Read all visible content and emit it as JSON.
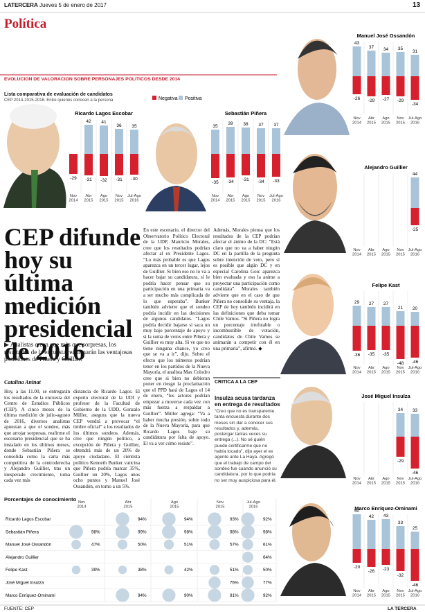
{
  "header": {
    "brand": "LATERCERA",
    "date": "Jueves 5 de enero de 2017",
    "page": "13",
    "section": "Política"
  },
  "graphic": {
    "label": "EVOLUCION DE VALORACION SOBRE PERSONAJES POLITICOS DESDE 2014",
    "subtitle": "Lista comparativa de evaluación de candidatos",
    "note": "CEP 2014-2015-2016. Entre quienes conocen a la persona"
  },
  "chart_data": [
    {
      "type": "bar",
      "title": "Ricardo Lagos Escobar",
      "categories": [
        "Nov 2014",
        "Abr 2015",
        "Ago 2015",
        "Nov 2015",
        "Jul-Ago 2016"
      ],
      "ylim": [
        -50,
        50
      ],
      "series": [
        {
          "name": "Negativa",
          "color": "#d6202e",
          "values": [
            -29,
            -31,
            -32,
            -31,
            -30
          ]
        },
        {
          "name": "Positiva",
          "color": "#a9c4d8",
          "values": [
            null,
            42,
            41,
            36,
            35
          ]
        }
      ]
    },
    {
      "type": "bar",
      "title": "Sebastián Piñera",
      "categories": [
        "Nov 2014",
        "Abr 2015",
        "Ago 2015",
        "Nov 2015",
        "Jul-Ago 2016"
      ],
      "ylim": [
        -50,
        50
      ],
      "series": [
        {
          "name": "Negativa",
          "color": "#d6202e",
          "values": [
            -35,
            -34,
            -31,
            -34,
            -33
          ]
        },
        {
          "name": "Positiva",
          "color": "#a9c4d8",
          "values": [
            35,
            39,
            38,
            37,
            37
          ]
        }
      ]
    },
    {
      "type": "bar",
      "title": "Manuel José Ossandón",
      "categories": [
        "Nov 2014",
        "Abr 2015",
        "Ago 2015",
        "Nov 2015",
        "Jul-Ago 2016"
      ],
      "ylim": [
        -50,
        50
      ],
      "series": [
        {
          "name": "Negativa",
          "color": "#d6202e",
          "values": [
            -26,
            -29,
            -27,
            -29,
            -34
          ]
        },
        {
          "name": "Positiva",
          "color": "#a9c4d8",
          "values": [
            43,
            37,
            34,
            35,
            31
          ]
        }
      ]
    },
    {
      "type": "bar",
      "title": "Alejandro Guillier",
      "categories": [
        "Nov 2014",
        "Abr 2015",
        "Ago 2015",
        "Nov 2015",
        "Jul-Ago 2016"
      ],
      "ylim": [
        -50,
        50
      ],
      "series": [
        {
          "name": "Negativa",
          "color": "#d6202e",
          "values": [
            null,
            null,
            null,
            null,
            -25
          ]
        },
        {
          "name": "Positiva",
          "color": "#a9c4d8",
          "values": [
            null,
            null,
            null,
            null,
            44
          ]
        }
      ]
    },
    {
      "type": "bar",
      "title": "Felipe Kast",
      "categories": [
        "Nov 2014",
        "Abr 2015",
        "Ago 2015",
        "Nov 2015",
        "Jul-Ago 2016"
      ],
      "ylim": [
        -50,
        50
      ],
      "series": [
        {
          "name": "Negativa",
          "color": "#d6202e",
          "values": [
            -36,
            -35,
            -35,
            -48,
            -46
          ]
        },
        {
          "name": "Positiva",
          "color": "#a9c4d8",
          "values": [
            29,
            27,
            27,
            21,
            20
          ]
        }
      ]
    },
    {
      "type": "bar",
      "title": "José Miguel Insulza",
      "categories": [
        "Nov 2014",
        "Abr 2015",
        "Ago 2015",
        "Nov 2015",
        "Jul-Ago 2016"
      ],
      "ylim": [
        -50,
        50
      ],
      "series": [
        {
          "name": "Negativa",
          "color": "#d6202e",
          "values": [
            null,
            null,
            null,
            -29,
            -46
          ]
        },
        {
          "name": "Positiva",
          "color": "#a9c4d8",
          "values": [
            null,
            null,
            null,
            34,
            33
          ]
        }
      ]
    },
    {
      "type": "bar",
      "title": "Marco Enríquez-Ominami",
      "categories": [
        "Nov 2014",
        "Abr 2015",
        "Ago 2015",
        "Nov 2015",
        "Jul-Ago 2016"
      ],
      "ylim": [
        -50,
        50
      ],
      "series": [
        {
          "name": "Negativa",
          "color": "#d6202e",
          "values": [
            -20,
            -26,
            -23,
            -32,
            -46
          ]
        },
        {
          "name": "Positiva",
          "color": "#a9c4d8",
          "values": [
            50,
            42,
            43,
            33,
            25
          ]
        }
      ]
    }
  ],
  "article": {
    "headline": "CEP difunde hoy su última medición presidencial de 2016",
    "lead": "Analistas creen que más que sorpresas, los resultados de la encuesta reafirmarán las ventajosas posiciones de Piñera y Guillier.",
    "byline": "Catalina Aninat",
    "body": [
      "Hoy, a las 11.00, se entregarán los resultados de la encuesta del Centro de Estudios Públicos (CEP). A cinco meses de la última medición de julio-agosto de 2016, diversos analistas apuestan a que el sondeo, más que arrojar sorpresas, reafirme el escenario presidencial que se ha instalado en los últimos meses, donde Sebastián Piñera se consolida como la carta más competitiva de la centroderecha y Alejandro Guillier, tras un inesperado crecimiento, toma cada vez más",
      "distancia de Ricardo Lagos. El experto electoral de la UDI y profesor de la Facultad de Gobierno de la UDD, Gonzalo Müller, asegura que la nueva CEP vendrá a provocar “el timbre oficial” a los resultados de los últimos sondeos. Además, cree que ningún político, a excepción de Piñera y Guillier, obtendrá más de un 20% de apoyo ciudadano. El cientista político Kenneth Bunker vaticina que Piñera podría marcar 35%, Guillier un 20%, Lagos unos ocho puntos y Manuel José Ossandón, en torno a un 5%.",
      "En este escenario, el director del Observatorio Político Electoral de la UDP, Mauricio Morales, cree que los resultados podrían afectar al ex Presidente Lagos. “Lo más probable es que Lagos aparezca en un tercer lugar, lejos de Guillier. Si bien eso no lo va a hacer bajar su candidatura, sí le podría hacer pensar que su participación en una primaria va a ser mucho más complicada de lo que esperaba”. Bunker también advierte que el sondeo podría incidir en las decisiones de algunos candidatos. “Lagos podría decidir bajarse si saca un muy bajo porcentaje de apoyo y si la suma de votos entre Piñera y Guillier es muy alta. Si ve que no tiene ninguna chance, yo creo que se va a ir”, dijo. Sobre el efecto que los números podrían tener en los partidos de la Nueva Mayoría, el analista Max Colodro cree que si bien no debieran poner en riesgo la proclamación que el PPD hará de Lagos el 14 de enero, “los actores podrían empezar a moverse cada vez con más fuerza a respaldar a Guillier”. Müller agrega: “Va a haber mucha presión, sobre todo de la Nueva Mayoría, para que Ricardo Lagos baje su candidatura por falta de apoyo. El va a ver cómo resiste”.",
      "Además, Morales piensa que los resultados de la CEP podrían afectar el ánimo de la DC: “Está claro que no va a haber ningún DC en la parrilla de la pregunta sobre intención de voto, pero sí es posible que algún DC y en especial Carolina Goic aparezca bien evaluada y eso la anime a proyectar una participación como candidata”. Morales también advierte que en el caso de que Piñera no consolide su ventaja, la CEP de hoy también incidirá en las definiciones que deba tomar Chile Vamos. “Si Piñera no logra un porcentaje irrefutable o incombustible de votación, candidatos de Chile Vamos se animarán a competir con él en una primaria”, afirmó. ◆"
    ]
  },
  "sidebar": {
    "kicker": "CRITICA A LA CEP",
    "title": "Insulza acusa tardanza en entrega de resultados",
    "text": "“Creo que no es transparente tanta encuesta durante dos meses sin dar a conocer sus resultados y, además, postergar tantas veces su entrega (...). No sé quién puede certificarme que no había tocado”, dijo ayer el ex agente ante La Haya. Agregó que el trabajo de campo del sondeo fue cuando anunció su candidatura, por lo que podría no ser muy auspiciosa para él."
  },
  "table": {
    "title": "Porcentajes de conocimiento",
    "columns": [
      "Nov 2014",
      "Abr 2015",
      "Ago 2015",
      "Nov 2015",
      "Jul-Ago 2016"
    ],
    "rows": [
      {
        "name": "Ricardo Lagos Escobar",
        "values": [
          null,
          94,
          94,
          93,
          92
        ],
        "value_labels": [
          null,
          "94%",
          "94%",
          "93%",
          "92%"
        ]
      },
      {
        "name": "Sebastián Piñera",
        "values": [
          98,
          99,
          98,
          98,
          98
        ],
        "value_labels": [
          "98%",
          "99%",
          "98%",
          "98%",
          "98%"
        ]
      },
      {
        "name": "Manuel José Ossandón",
        "values": [
          47,
          50,
          51,
          57,
          61
        ],
        "value_labels": [
          "47%",
          "50%",
          "51%",
          "57%",
          "61%"
        ]
      },
      {
        "name": "Alejandro Guillier",
        "values": [
          null,
          null,
          null,
          null,
          64
        ],
        "value_labels": [
          null,
          null,
          null,
          null,
          "64%"
        ]
      },
      {
        "name": "Felipe Kast",
        "values": [
          39,
          38,
          42,
          51,
          50
        ],
        "value_labels": [
          "39%",
          "38%",
          "42%",
          "51%",
          "50%"
        ]
      },
      {
        "name": "José Miguel Insulza",
        "values": [
          null,
          null,
          null,
          76,
          77
        ],
        "value_labels": [
          null,
          null,
          null,
          "76%",
          "77%"
        ]
      },
      {
        "name": "Marco Enríquez-Ominami",
        "values": [
          null,
          94,
          90,
          91,
          92
        ],
        "value_labels": [
          null,
          "94%",
          "90%",
          "91%",
          "92%"
        ]
      }
    ]
  },
  "footer": {
    "source": "FUENTE: CEP",
    "brand": "LA TERCERA"
  }
}
